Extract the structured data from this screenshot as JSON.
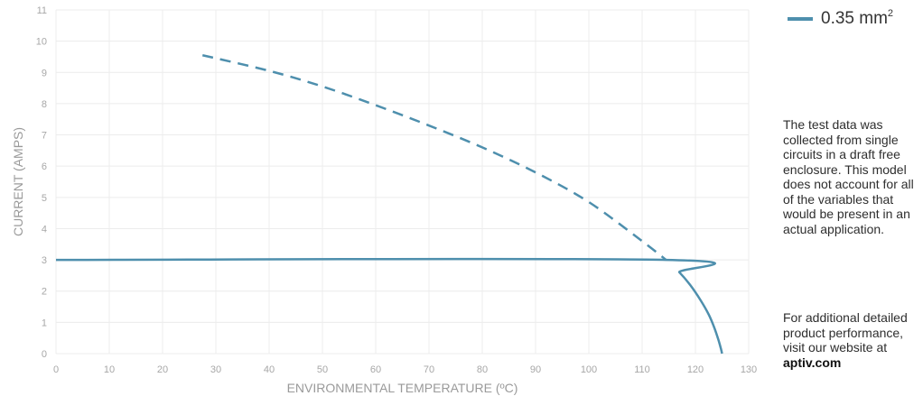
{
  "chart_data": {
    "type": "line",
    "xlabel": "ENVIRONMENTAL TEMPERATURE (ºC)",
    "ylabel": "CURRENT (AMPS)",
    "xlim": [
      0,
      130
    ],
    "ylim": [
      0,
      11
    ],
    "x_ticks": [
      0,
      10,
      20,
      30,
      40,
      50,
      60,
      70,
      80,
      90,
      100,
      110,
      120,
      130
    ],
    "y_ticks": [
      0,
      1,
      2,
      3,
      4,
      5,
      6,
      7,
      8,
      9,
      10,
      11
    ],
    "grid": true,
    "legend": "top-right",
    "series": [
      {
        "name": "0.35 mm²",
        "color": "#4e8fad",
        "style": "dashed",
        "x": [
          27.5,
          40,
          50,
          60,
          70,
          80,
          90,
          100,
          110,
          114.5
        ],
        "y": [
          9.55,
          9.05,
          8.55,
          7.95,
          7.3,
          6.6,
          5.8,
          4.85,
          3.6,
          3.0
        ]
      },
      {
        "name": "0.35 mm²",
        "color": "#4e8fad",
        "style": "solid",
        "x": [
          0,
          114.5,
          117,
          119,
          121,
          122.5,
          123.5,
          124.3,
          124.8,
          125
        ],
        "y": [
          3.0,
          3.0,
          2.6,
          2.2,
          1.7,
          1.25,
          0.85,
          0.45,
          0.15,
          0
        ]
      }
    ]
  },
  "legend": {
    "label": "0.35 mm",
    "superscript": "2"
  },
  "notes": {
    "paragraph_1": "The test data was collected from single circuits in a draft free enclosure. This model does not account for all of the variables that would be present in an actual application.",
    "paragraph_2": "For additional detailed product performance, visit our website at",
    "website": "aptiv.com"
  }
}
